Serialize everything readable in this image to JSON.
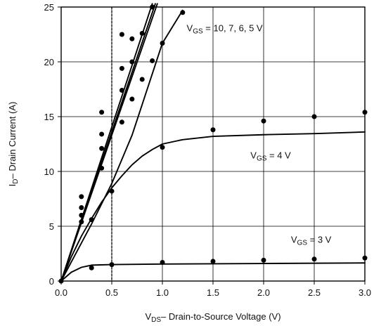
{
  "chart_data": {
    "type": "line",
    "xlabel": {
      "pre": "V",
      "sub": "DS",
      "post": "– Drain-to-Source Voltage (V)"
    },
    "ylabel": {
      "pre": "I",
      "sub": "D",
      "post": "– Drain Current (A)"
    },
    "xlim": [
      0,
      3.0
    ],
    "ylim": [
      0,
      25
    ],
    "x_ticks": [
      0,
      0.5,
      1.0,
      1.5,
      2.0,
      2.5,
      3.0
    ],
    "x_tick_labels": [
      "0.0",
      "0.5",
      "1.0",
      "1.5",
      "2.0",
      "2.5",
      "3.0"
    ],
    "y_ticks": [
      0,
      5,
      10,
      15,
      20,
      25
    ],
    "y_tick_labels": [
      "0",
      "5",
      "10",
      "15",
      "20",
      "25"
    ],
    "grid": true,
    "reference_line": {
      "x": 0.5,
      "style": "dashed"
    },
    "annotations": [
      {
        "pre": "V",
        "sub": "GS",
        "post": " = 10, 7, 6, 5 V",
        "x": 1.24,
        "y": 22.8
      },
      {
        "pre": "V",
        "sub": "GS",
        "post": " = 4 V",
        "x": 1.87,
        "y": 11.2
      },
      {
        "pre": "V",
        "sub": "GS",
        "post": " = 3 V",
        "x": 2.27,
        "y": 3.5
      }
    ],
    "series": [
      {
        "curve": [
          [
            0,
            0
          ],
          [
            0.9,
            25.3
          ]
        ],
        "points": [
          [
            0.2,
            7.7
          ],
          [
            0.4,
            15.4
          ],
          [
            0.6,
            22.5
          ]
        ]
      },
      {
        "curve": [
          [
            0,
            0
          ],
          [
            0.93,
            25.3
          ]
        ],
        "points": [
          [
            0.2,
            6.7
          ],
          [
            0.4,
            13.4
          ],
          [
            0.6,
            19.4
          ],
          [
            0.7,
            22.1
          ],
          [
            0.8,
            22.6
          ]
        ]
      },
      {
        "curve": [
          [
            0,
            0
          ],
          [
            0.95,
            25.3
          ]
        ],
        "points": [
          [
            0.2,
            6.0
          ],
          [
            0.4,
            12.1
          ],
          [
            0.6,
            17.4
          ],
          [
            0.7,
            20.0
          ],
          [
            0.9,
            25.0
          ]
        ]
      },
      {
        "curve": [
          [
            0,
            0
          ],
          [
            0.3,
            5.2
          ],
          [
            0.5,
            8.9
          ],
          [
            0.7,
            13.3
          ],
          [
            0.9,
            18.9
          ],
          [
            1.0,
            21.7
          ],
          [
            1.2,
            24.7
          ]
        ],
        "points": [
          [
            0.2,
            5.4
          ],
          [
            0.4,
            10.3
          ],
          [
            0.6,
            14.5
          ],
          [
            0.7,
            16.6
          ],
          [
            0.8,
            18.4
          ],
          [
            0.9,
            20.1
          ],
          [
            1.0,
            21.7
          ],
          [
            1.2,
            24.5
          ]
        ]
      },
      {
        "curve": [
          [
            0,
            0
          ],
          [
            0.1,
            2.2
          ],
          [
            0.2,
            4.1
          ],
          [
            0.3,
            5.7
          ],
          [
            0.4,
            7.2
          ],
          [
            0.5,
            8.5
          ],
          [
            0.6,
            9.6
          ],
          [
            0.7,
            10.6
          ],
          [
            0.8,
            11.4
          ],
          [
            0.9,
            12.0
          ],
          [
            1.0,
            12.5
          ],
          [
            1.2,
            12.9
          ],
          [
            1.5,
            13.2
          ],
          [
            2.0,
            13.35
          ],
          [
            2.5,
            13.45
          ],
          [
            3.0,
            13.6
          ]
        ],
        "points": [
          [
            0.3,
            5.6
          ],
          [
            0.5,
            8.2
          ],
          [
            1.0,
            12.2
          ],
          [
            1.5,
            13.8
          ],
          [
            2.0,
            14.6
          ],
          [
            2.5,
            15.0
          ],
          [
            3.0,
            15.4
          ]
        ]
      },
      {
        "curve": [
          [
            0,
            0
          ],
          [
            0.1,
            0.8
          ],
          [
            0.2,
            1.25
          ],
          [
            0.3,
            1.45
          ],
          [
            0.5,
            1.5
          ],
          [
            1.0,
            1.55
          ],
          [
            2.0,
            1.6
          ],
          [
            3.0,
            1.65
          ]
        ],
        "points": [
          [
            0.3,
            1.2
          ],
          [
            0.5,
            1.5
          ],
          [
            1.0,
            1.7
          ],
          [
            1.5,
            1.8
          ],
          [
            2.0,
            1.9
          ],
          [
            2.5,
            2.0
          ],
          [
            3.0,
            2.1
          ]
        ]
      }
    ]
  }
}
